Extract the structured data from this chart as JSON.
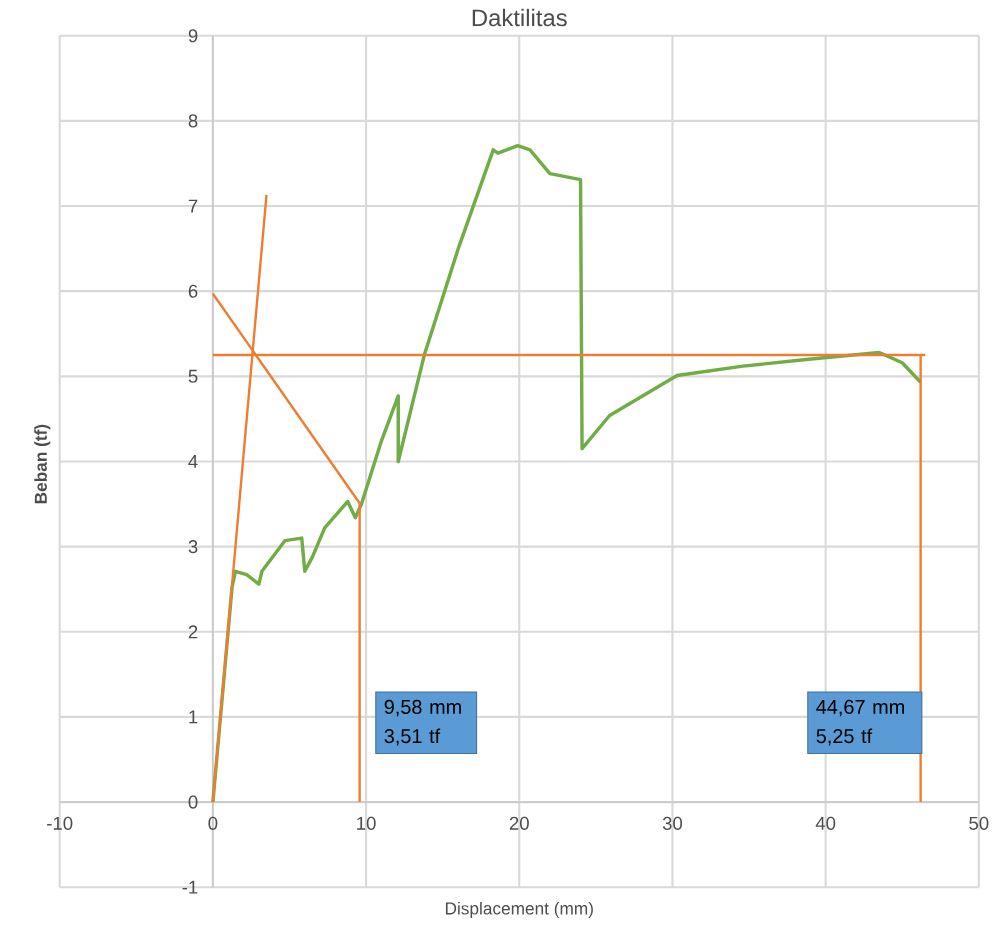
{
  "chart_data": {
    "type": "line",
    "title": "Daktilitas",
    "xlabel": "Displacement (mm)",
    "ylabel": "Beban (tf)",
    "xlim": [
      -10,
      50
    ],
    "ylim": [
      -1,
      9
    ],
    "xticks": [
      -10,
      0,
      10,
      20,
      30,
      40,
      50
    ],
    "yticks": [
      -1,
      0,
      1,
      2,
      3,
      4,
      5,
      6,
      7,
      8,
      9
    ],
    "grid": true,
    "annotations": [
      "9,58 mm 3,51 tf",
      "44,67 mm 5,25 tf"
    ],
    "series": [
      {
        "color": "#70ad47",
        "x": [
          0,
          1.25,
          1.47,
          2.2,
          3.0,
          3.2,
          4.7,
          5.8,
          6.0,
          6.5,
          7.3,
          8.8,
          9.3,
          9.7,
          11.0,
          12.1,
          12.1,
          13.8,
          16.0,
          18.3,
          18.6,
          19.9,
          20.7,
          22.0,
          24.0,
          24.1,
          25.9,
          30.3,
          34.6,
          38.9,
          43.5,
          45.0,
          46.2
        ],
        "values": [
          0,
          2.52,
          2.71,
          2.67,
          2.56,
          2.71,
          3.07,
          3.1,
          2.71,
          2.88,
          3.22,
          3.53,
          3.34,
          3.5,
          4.24,
          4.77,
          4.0,
          5.25,
          6.49,
          7.66,
          7.62,
          7.71,
          7.66,
          7.38,
          7.31,
          4.15,
          4.54,
          5.01,
          5.12,
          5.2,
          5.28,
          5.16,
          4.93
        ]
      },
      {
        "color": "#ed7d31",
        "x": [
          0,
          3.5
        ],
        "values": [
          0,
          7.13
        ]
      },
      {
        "color": "#ed7d31",
        "x": [
          0,
          9.58
        ],
        "values": [
          5.97,
          3.51
        ]
      },
      {
        "color": "#ed7d31",
        "x": [
          0,
          46.5
        ],
        "values": [
          5.25,
          5.25
        ]
      },
      {
        "color": "#ed7d31",
        "x": [
          9.58,
          9.58
        ],
        "values": [
          0,
          3.51
        ]
      },
      {
        "color": "#ed7d31",
        "x": [
          46.2,
          46.2
        ],
        "values": [
          0,
          5.25
        ]
      }
    ]
  }
}
